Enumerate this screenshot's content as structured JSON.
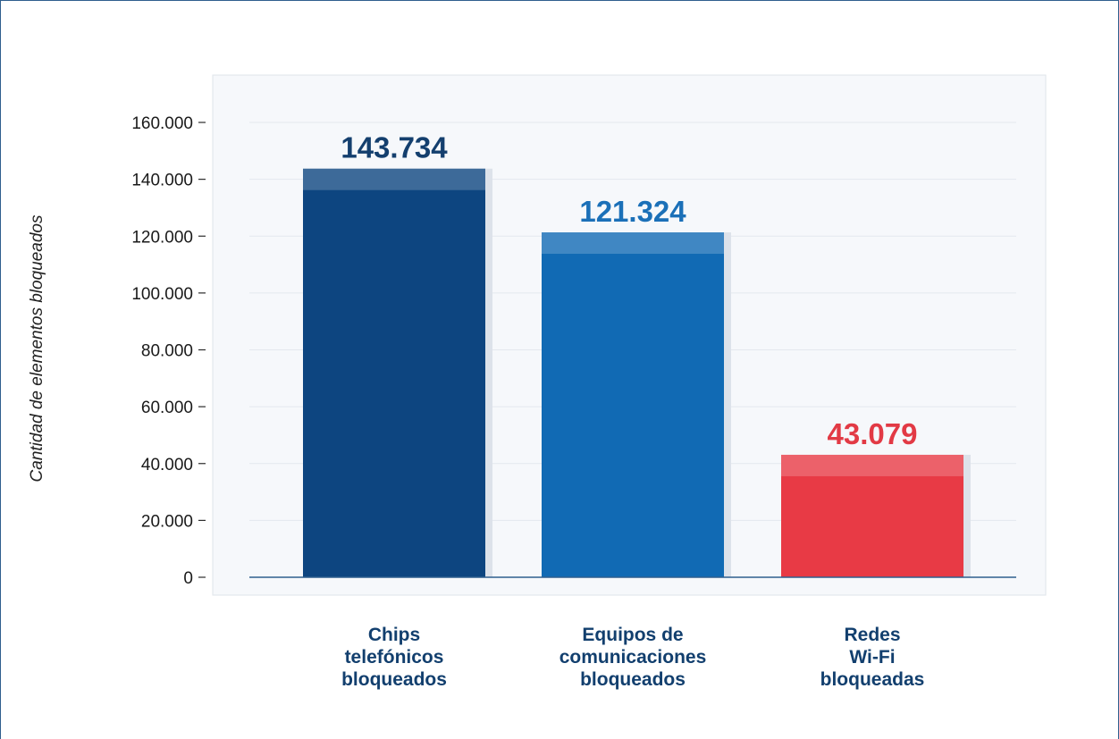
{
  "chart_data": {
    "type": "bar",
    "title": "",
    "xlabel": "",
    "ylabel": "Cantidad de elementos bloqueados",
    "ylim": [
      0,
      160000
    ],
    "yticks": [
      0,
      20000,
      40000,
      60000,
      80000,
      100000,
      120000,
      140000,
      160000
    ],
    "ytick_labels": [
      "0",
      "20.000",
      "40.000",
      "60.000",
      "80.000",
      "100.000",
      "120.000",
      "140.000",
      "160.000"
    ],
    "grid": true,
    "legend": "none",
    "categories": [
      [
        "Chips",
        "telefónicos",
        "bloqueados"
      ],
      [
        "Equipos de",
        "comunicaciones",
        "bloqueados"
      ],
      [
        "Redes",
        "Wi-Fi",
        "bloqueadas"
      ]
    ],
    "values": [
      143734,
      121324,
      43079
    ],
    "value_labels": [
      "143.734",
      "121.324",
      "43.079"
    ],
    "colors": [
      "#0d4580",
      "#116ab4",
      "#e83a45"
    ],
    "value_label_colors": [
      "#143f6e",
      "#1b70b8",
      "#e23a45"
    ]
  }
}
